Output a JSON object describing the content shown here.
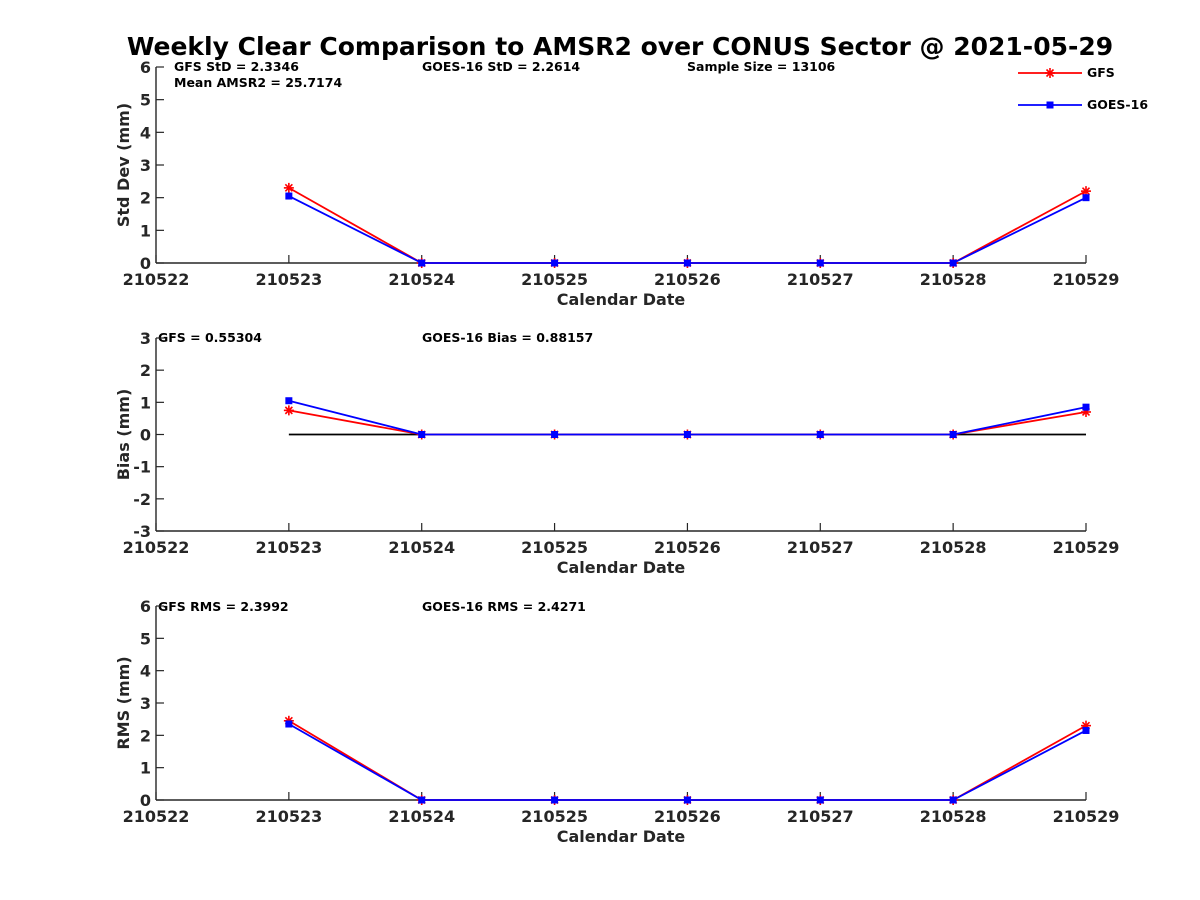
{
  "figure": {
    "title": "Weekly Clear Comparison to AMSR2 over CONUS Sector @ 2021-05-29",
    "legend": {
      "placement": "top-right",
      "entries": [
        {
          "label": "GFS",
          "color": "#ff0000",
          "marker": "asterisk"
        },
        {
          "label": "GOES-16",
          "color": "#0000ff",
          "marker": "square"
        }
      ]
    }
  },
  "chart_data": [
    {
      "type": "line",
      "xlabel": "Calendar Date",
      "ylabel": "Std Dev (mm)",
      "x": [
        "210522",
        "210523",
        "210524",
        "210525",
        "210526",
        "210527",
        "210528",
        "210529"
      ],
      "ylim": [
        0,
        6
      ],
      "yticks": [
        0,
        1,
        2,
        3,
        4,
        5,
        6
      ],
      "annotations": [
        "GFS StD = 2.3346",
        "Mean AMSR2 = 25.7174",
        "GOES-16 StD = 2.2614",
        "Sample Size = 13106"
      ],
      "series": [
        {
          "name": "GFS",
          "color": "#ff0000",
          "values": [
            null,
            2.3,
            0,
            0,
            0,
            0,
            0,
            2.2
          ]
        },
        {
          "name": "GOES-16",
          "color": "#0000ff",
          "values": [
            null,
            2.05,
            0,
            0,
            0,
            0,
            0,
            2.0
          ]
        }
      ],
      "zero_line": false
    },
    {
      "type": "line",
      "xlabel": "Calendar Date",
      "ylabel": "Bias (mm)",
      "x": [
        "210522",
        "210523",
        "210524",
        "210525",
        "210526",
        "210527",
        "210528",
        "210529"
      ],
      "ylim": [
        -3,
        3
      ],
      "yticks": [
        -3,
        -2,
        -1,
        0,
        1,
        2,
        3
      ],
      "annotations": [
        "GFS = 0.55304",
        "GOES-16 Bias  = 0.88157"
      ],
      "series": [
        {
          "name": "GFS",
          "color": "#ff0000",
          "values": [
            null,
            0.75,
            0,
            0,
            0,
            0,
            0,
            0.7
          ]
        },
        {
          "name": "GOES-16",
          "color": "#0000ff",
          "values": [
            null,
            1.05,
            0,
            0,
            0,
            0,
            0,
            0.85
          ]
        }
      ],
      "zero_line": true
    },
    {
      "type": "line",
      "xlabel": "Calendar Date",
      "ylabel": "RMS (mm)",
      "x": [
        "210522",
        "210523",
        "210524",
        "210525",
        "210526",
        "210527",
        "210528",
        "210529"
      ],
      "ylim": [
        0,
        6
      ],
      "yticks": [
        0,
        1,
        2,
        3,
        4,
        5,
        6
      ],
      "annotations": [
        "GFS RMS = 2.3992",
        "GOES-16 RMS = 2.4271"
      ],
      "series": [
        {
          "name": "GFS",
          "color": "#ff0000",
          "values": [
            null,
            2.45,
            0,
            0,
            0,
            0,
            0,
            2.3
          ]
        },
        {
          "name": "GOES-16",
          "color": "#0000ff",
          "values": [
            null,
            2.35,
            0,
            0,
            0,
            0,
            0,
            2.15
          ]
        }
      ],
      "zero_line": false
    }
  ]
}
